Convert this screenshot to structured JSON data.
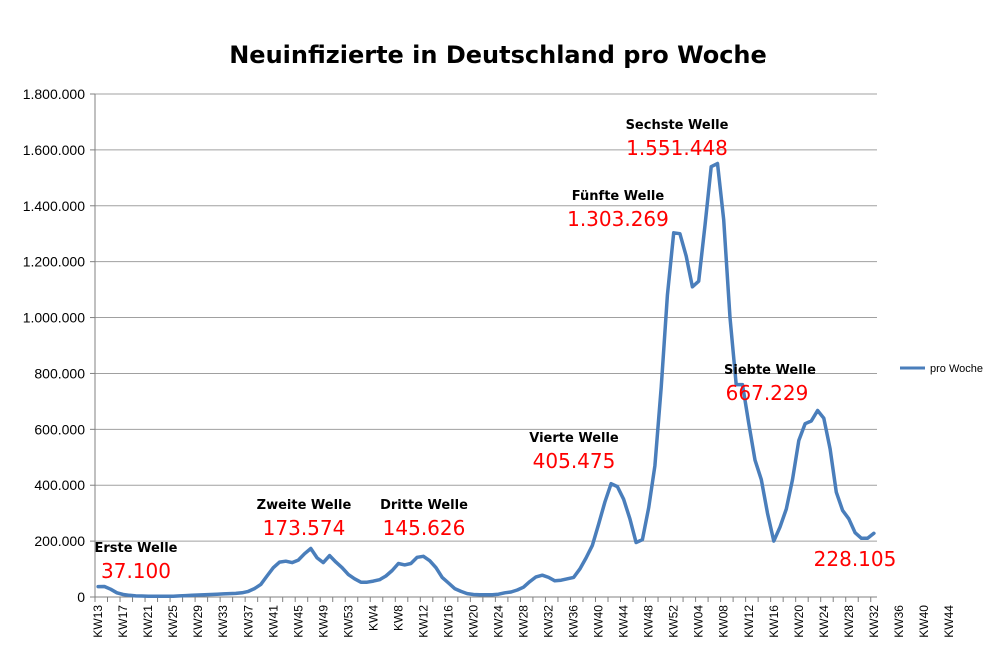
{
  "chart_data": {
    "type": "line",
    "title": "Neuinfizierte in Deutschland pro Woche",
    "xlabel": "",
    "ylabel": "",
    "ylim": [
      0,
      1800000
    ],
    "yticks": [
      0,
      200000,
      400000,
      600000,
      800000,
      1000000,
      1200000,
      1400000,
      1600000,
      1800000
    ],
    "ytick_labels": [
      "0",
      "200.000",
      "400.000",
      "600.000",
      "800.000",
      "1.000.000",
      "1.200.000",
      "1.400.000",
      "1.600.000",
      "1.800.000"
    ],
    "grid": true,
    "legend_position": "right",
    "x_tick_labels": [
      "KW13",
      "KW17",
      "KW21",
      "KW25",
      "KW29",
      "KW33",
      "KW37",
      "KW41",
      "KW45",
      "KW49",
      "KW53",
      "KW4",
      "KW8",
      "KW12",
      "KW16",
      "KW20",
      "KW24",
      "KW28",
      "KW32",
      "KW36",
      "KW40",
      "KW44",
      "KW48",
      "KW52",
      "KW04",
      "KW08",
      "KW12",
      "KW16",
      "KW20",
      "KW24",
      "KW28",
      "KW32",
      "KW36",
      "KW40",
      "KW44"
    ],
    "series": [
      {
        "name": "pro Woche",
        "color": "#4a7ebb",
        "values": [
          37100,
          37500,
          28000,
          15000,
          9000,
          6000,
          4000,
          3500,
          3000,
          2500,
          2500,
          2500,
          3000,
          4000,
          5000,
          6000,
          7000,
          8000,
          9000,
          10000,
          11000,
          12000,
          13000,
          15000,
          20000,
          30000,
          45000,
          75000,
          105000,
          125000,
          128000,
          123000,
          132000,
          155000,
          173574,
          140000,
          123000,
          148000,
          125000,
          105000,
          80000,
          65000,
          53000,
          53000,
          57000,
          62000,
          75000,
          95000,
          120000,
          115000,
          120000,
          142000,
          145626,
          130000,
          105000,
          70000,
          50000,
          30000,
          20000,
          12000,
          9000,
          8000,
          8000,
          8000,
          10000,
          15000,
          18000,
          25000,
          35000,
          55000,
          72000,
          78000,
          70000,
          58000,
          60000,
          65000,
          70000,
          100000,
          140000,
          185000,
          260000,
          340000,
          405475,
          395000,
          350000,
          280000,
          195000,
          205000,
          320000,
          470000,
          750000,
          1080000,
          1303269,
          1300000,
          1220000,
          1110000,
          1130000,
          1330000,
          1540000,
          1551448,
          1350000,
          1000000,
          760000,
          760000,
          620000,
          490000,
          420000,
          300000,
          200000,
          250000,
          315000,
          420000,
          560000,
          620000,
          630000,
          667229,
          640000,
          530000,
          375000,
          310000,
          280000,
          230000,
          210000,
          210000,
          228105
        ],
        "wave_annotations": [
          {
            "label": "Erste Welle",
            "value": "37.100"
          },
          {
            "label": "Zweite Welle",
            "value": "173.574"
          },
          {
            "label": "Dritte Welle",
            "value": "145.626"
          },
          {
            "label": "Vierte Welle",
            "value": "405.475"
          },
          {
            "label": "Fünfte Welle",
            "value": "1.303.269"
          },
          {
            "label": "Sechste Welle",
            "value": "1.551.448"
          },
          {
            "label": "Siebte Welle",
            "value": "667.229"
          },
          {
            "label": "",
            "value": "228.105"
          }
        ]
      }
    ]
  }
}
